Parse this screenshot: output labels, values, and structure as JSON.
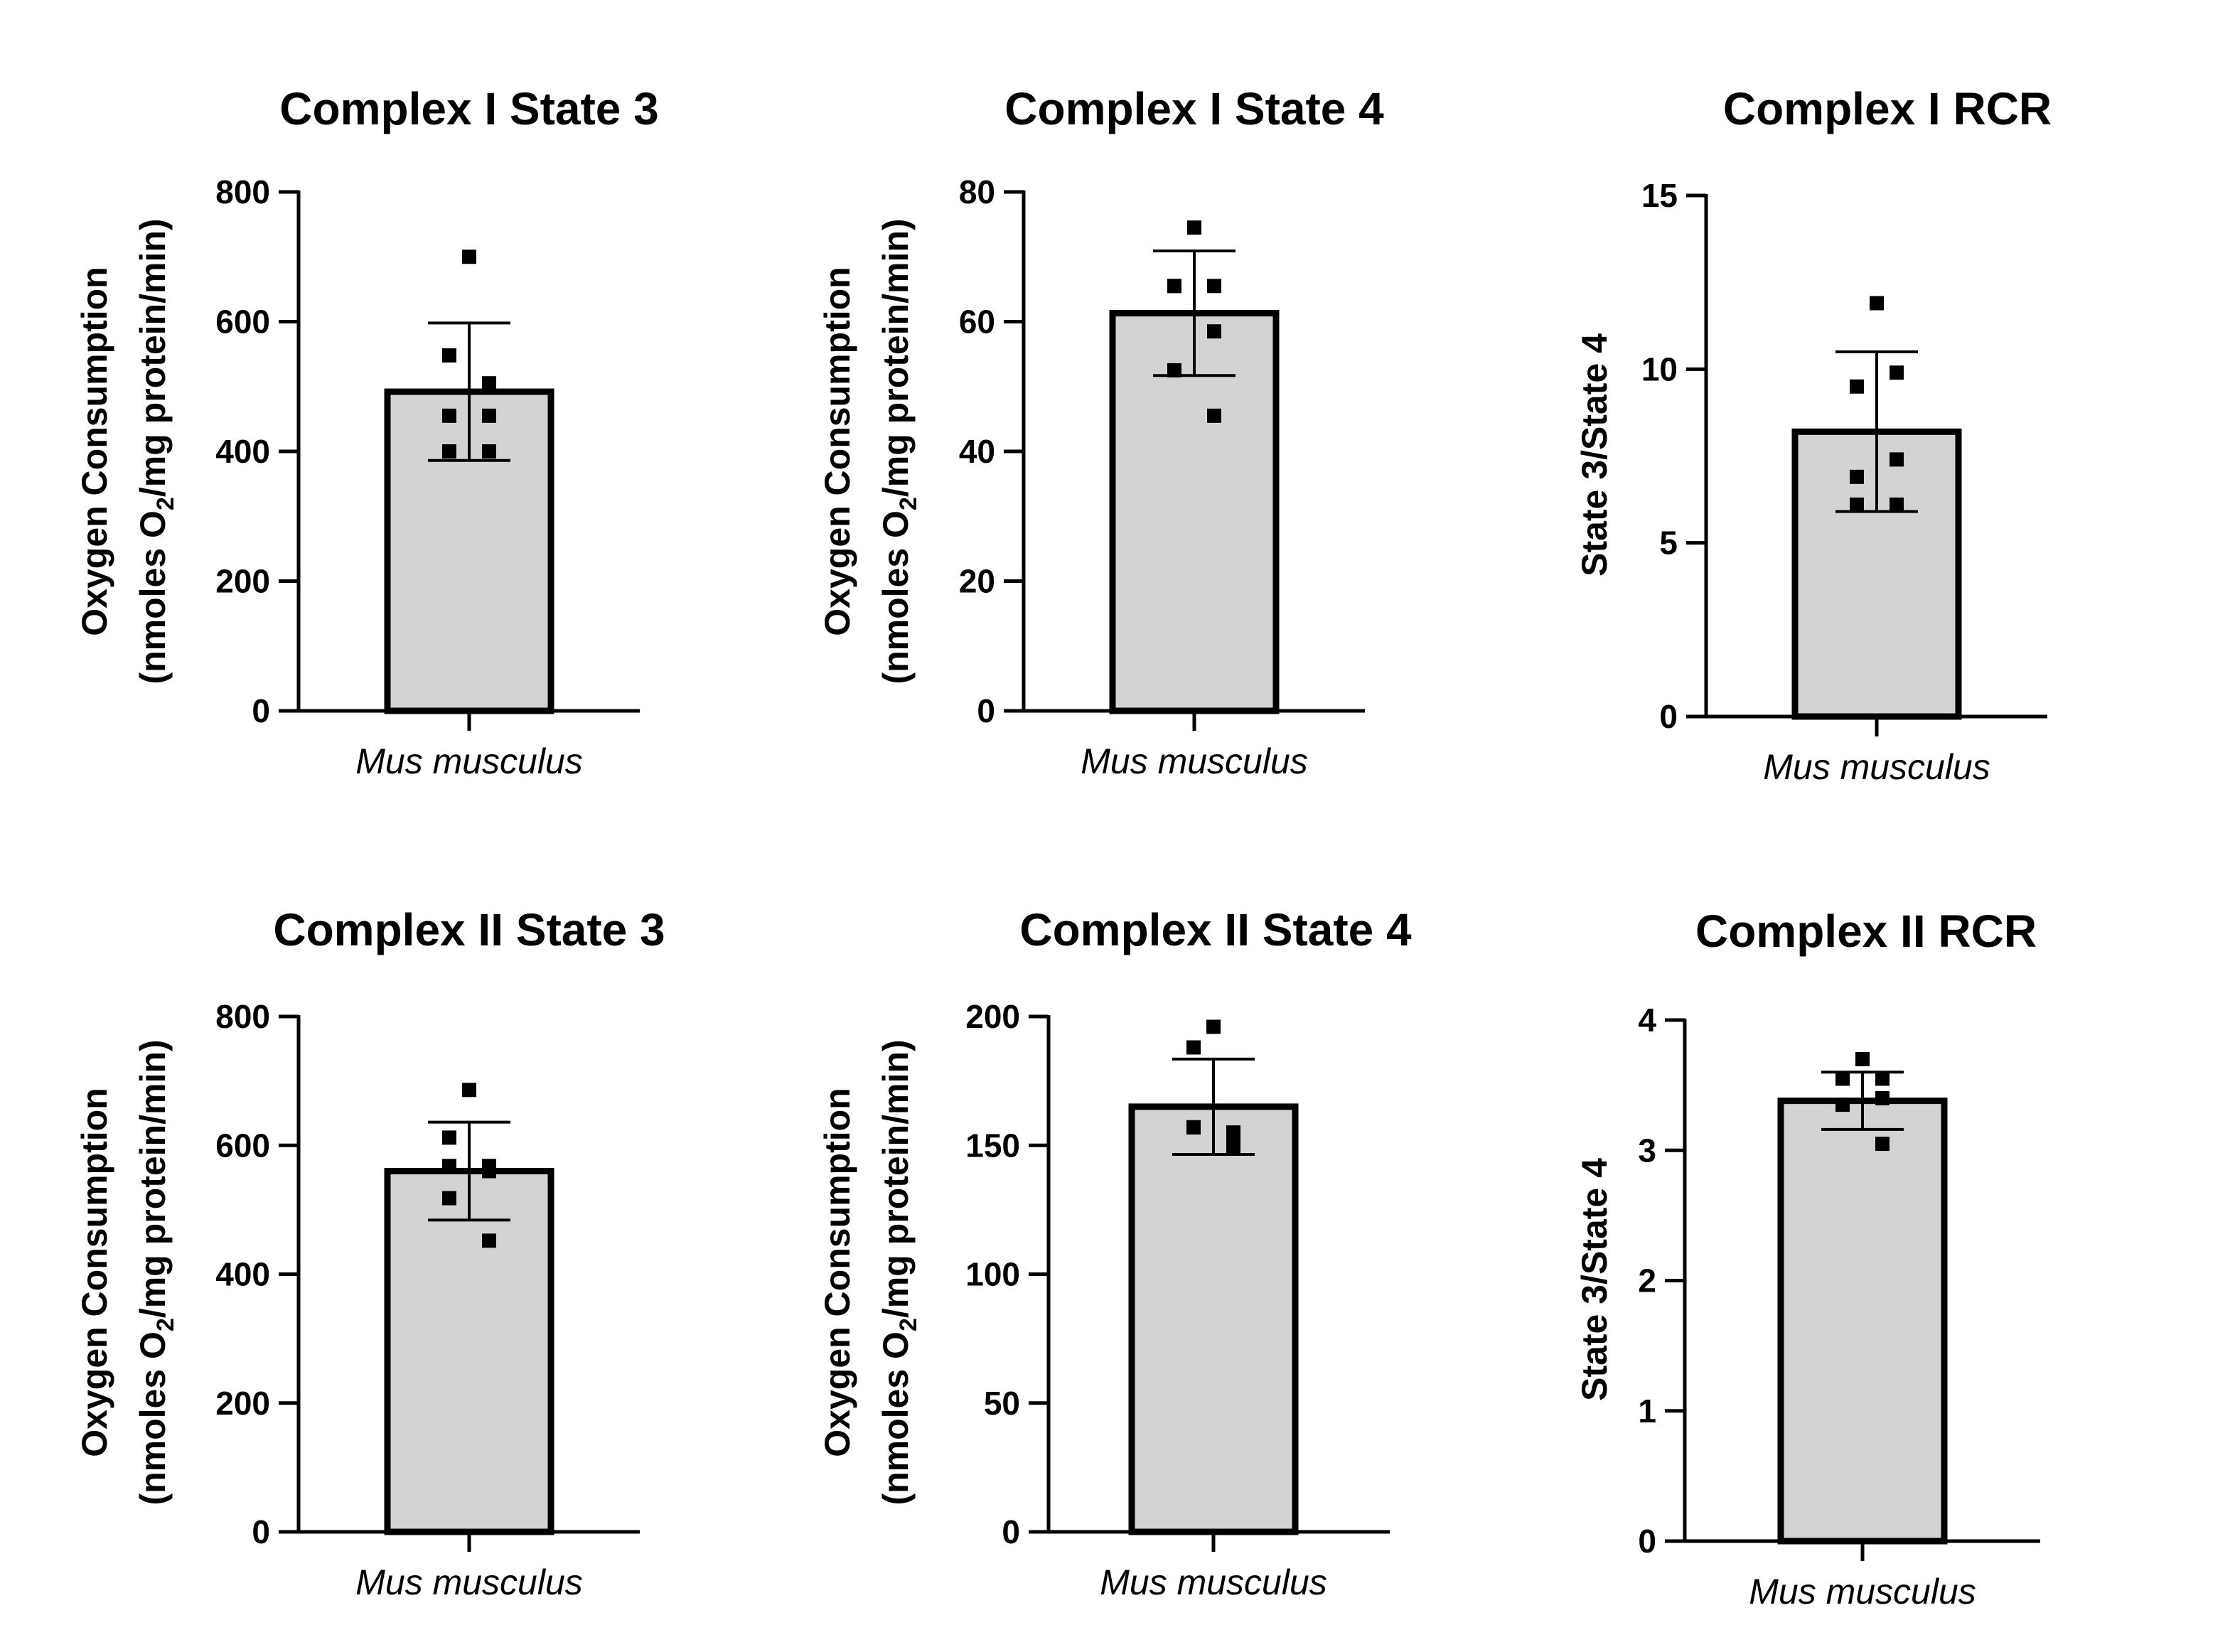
{
  "chart_data": [
    {
      "type": "bar",
      "title": "Complex I State 3",
      "ylabel_line1": "Oxygen Consumption",
      "ylabel_line2_pre": "(nmoles O",
      "ylabel_line2_sub": "2",
      "ylabel_line2_post": "/mg protein/min)",
      "categories": [
        "Mus musculus"
      ],
      "values": [
        492
      ],
      "error": [
        106
      ],
      "points": [
        700,
        548,
        505,
        455,
        455,
        400,
        400
      ],
      "ylim": [
        0,
        800
      ],
      "yticks": [
        0,
        200,
        400,
        600,
        800
      ]
    },
    {
      "type": "bar",
      "title": "Complex I State 4",
      "ylabel_line1": "Oxygen Consumption",
      "ylabel_line2_pre": "(nmoles O",
      "ylabel_line2_sub": "2",
      "ylabel_line2_post": "/mg protein/min)",
      "categories": [
        "Mus musculus"
      ],
      "values": [
        61.3
      ],
      "error": [
        9.6
      ],
      "points": [
        74.5,
        65.5,
        65.5,
        65.5,
        58.5,
        52.5,
        45.5
      ],
      "ylim": [
        0,
        80
      ],
      "yticks": [
        0,
        20,
        40,
        60,
        80
      ]
    },
    {
      "type": "bar",
      "title": "Complex I RCR",
      "ylabel": "State 3/State 4",
      "categories": [
        "Mus musculus"
      ],
      "values": [
        8.2
      ],
      "error": [
        2.3
      ],
      "points": [
        11.9,
        9.5,
        9.9,
        6.9,
        7.4,
        6.1,
        6.1
      ],
      "ylim": [
        0,
        15
      ],
      "yticks": [
        0,
        5,
        10,
        15
      ]
    },
    {
      "type": "bar",
      "title": "Complex II State 3",
      "ylabel_line1": "Oxygen Consumption",
      "ylabel_line2_pre": "(nmoles O",
      "ylabel_line2_sub": "2",
      "ylabel_line2_post": "/mg protein/min)",
      "categories": [
        "Mus musculus"
      ],
      "values": [
        560
      ],
      "error": [
        76
      ],
      "points": [
        686,
        612,
        568,
        568,
        560,
        518,
        452
      ],
      "ylim": [
        0,
        800
      ],
      "yticks": [
        0,
        200,
        400,
        600,
        800
      ]
    },
    {
      "type": "bar",
      "title": "Complex II State 4",
      "ylabel_line1": "Oxygen Consumption",
      "ylabel_line2_pre": "(nmoles O",
      "ylabel_line2_sub": "2",
      "ylabel_line2_post": "/mg protein/min)",
      "categories": [
        "Mus musculus"
      ],
      "values": [
        165
      ],
      "error": [
        18.5
      ],
      "points": [
        196,
        188,
        155,
        157,
        154,
        157,
        149
      ],
      "ylim": [
        0,
        200
      ],
      "yticks": [
        0,
        50,
        100,
        150,
        200
      ]
    },
    {
      "type": "bar",
      "title": "Complex II RCR",
      "ylabel": "State 3/State 4",
      "categories": [
        "Mus musculus"
      ],
      "values": [
        3.38
      ],
      "error": [
        0.22
      ],
      "points": [
        3.7,
        3.55,
        3.55,
        3.55,
        3.4,
        3.35,
        3.05
      ],
      "ylim": [
        0,
        4
      ],
      "yticks": [
        0,
        1,
        2,
        3,
        4
      ]
    }
  ]
}
